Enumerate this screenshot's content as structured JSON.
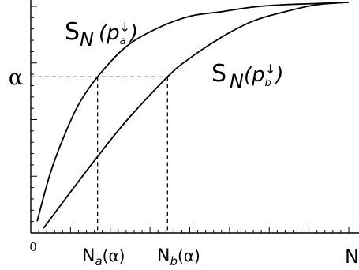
{
  "chart_data": {
    "type": "line",
    "title": "",
    "xlabel": "N",
    "ylabel": "",
    "xlim": [
      0,
      1
    ],
    "ylim": [
      0,
      1
    ],
    "grid": false,
    "x_tick_labels": [
      "0",
      "N_a(α)",
      "N_b(α)",
      "N"
    ],
    "y_tick_labels": [
      "α"
    ],
    "alpha_level": 0.67,
    "crossings": {
      "N_a": 0.21,
      "N_b": 0.43
    },
    "series": [
      {
        "name": "S_N (p_a↓)",
        "x": [
          0.02,
          0.06,
          0.1,
          0.15,
          0.21,
          0.3,
          0.4,
          0.5,
          0.6,
          0.7,
          0.8,
          0.9,
          1.0
        ],
        "y": [
          0.05,
          0.25,
          0.4,
          0.55,
          0.67,
          0.8,
          0.88,
          0.93,
          0.95,
          0.97,
          0.98,
          0.985,
          0.99
        ]
      },
      {
        "name": "S_N (p_b↓)",
        "x": [
          0.04,
          0.1,
          0.2,
          0.3,
          0.43,
          0.5,
          0.6,
          0.7,
          0.8,
          0.9,
          1.0
        ],
        "y": [
          0.02,
          0.13,
          0.31,
          0.48,
          0.67,
          0.75,
          0.84,
          0.91,
          0.95,
          0.98,
          0.99
        ]
      }
    ],
    "labels": {
      "curve_a": {
        "S": "S",
        "N": "N",
        "p": "(p",
        "sub": "a",
        "arrow": "↓",
        "close": ")"
      },
      "curve_b": {
        "S": "S",
        "N": "N",
        "p": "(p",
        "sub": "b",
        "arrow": "↓",
        "close": ")"
      },
      "tick_0": "0",
      "tick_Na": {
        "N": "N",
        "sub": "a",
        "arg": "(α)"
      },
      "tick_Nb": {
        "N": "N",
        "sub": "b",
        "arg": "(α)"
      },
      "tick_N": "N",
      "alpha": "α"
    }
  }
}
